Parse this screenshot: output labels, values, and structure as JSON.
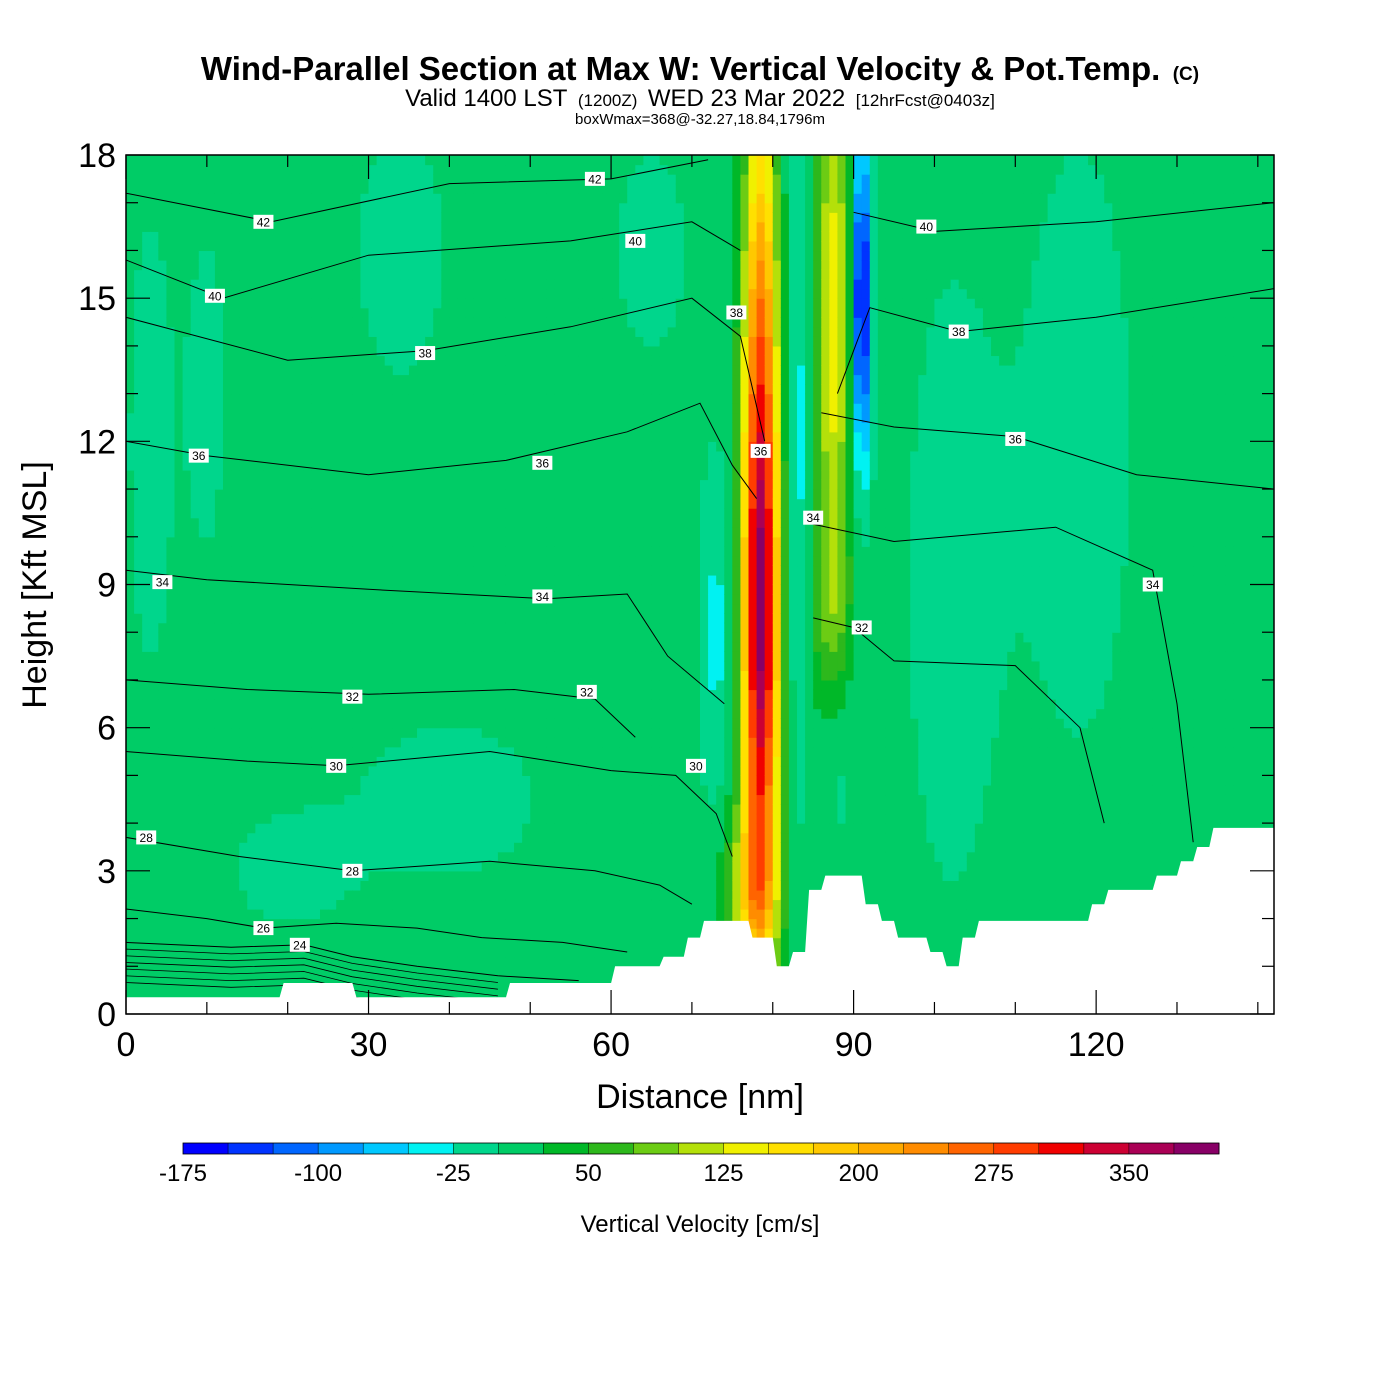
{
  "chart_data": {
    "type": "heatmap",
    "title": "Wind-Parallel Section at Max W: Vertical Velocity & Pot.Temp.",
    "title_mark": "(C)",
    "subtitle": {
      "prefix": "Valid 1400 LST",
      "utc": "(1200Z)",
      "date": "WED 23 Mar 2022",
      "forecast": "[12hrFcst@0403z]"
    },
    "note": "boxWmax=368@-32.27,18.84,1796m",
    "xlabel": "Distance [nm]",
    "ylabel": "Height [Kft MSL]",
    "xlim": [
      0,
      142
    ],
    "ylim": [
      0,
      18
    ],
    "x_ticks": [
      "0",
      "30",
      "60",
      "90",
      "120"
    ],
    "y_ticks": [
      "0",
      "3",
      "6",
      "9",
      "12",
      "15",
      "18"
    ],
    "colorbar": {
      "label": "Vertical Velocity [cm/s]",
      "levels": [
        -175,
        -150,
        -125,
        -100,
        -75,
        -50,
        -25,
        0,
        25,
        50,
        75,
        100,
        125,
        150,
        175,
        200,
        225,
        250,
        275,
        300,
        325,
        350,
        375
      ],
      "tick_labels": [
        "-175",
        "-100",
        "-25",
        "50",
        "125",
        "200",
        "275",
        "350"
      ],
      "colors": [
        "#0000ff",
        "#0033ff",
        "#0066ff",
        "#0099ff",
        "#00c8ff",
        "#00f2f2",
        "#00d68c",
        "#00cc66",
        "#00b828",
        "#2db81c",
        "#6ccc14",
        "#b4e00a",
        "#f0f000",
        "#ffe000",
        "#ffc800",
        "#ffaa00",
        "#ff8c00",
        "#ff6400",
        "#ff3c00",
        "#f00000",
        "#cc0033",
        "#aa0055",
        "#880066"
      ]
    },
    "vertical_velocity": {
      "description_free": true,
      "base_cm_s": 12,
      "features": [
        {
          "x": 78.5,
          "y": 8.0,
          "sx": 1.6,
          "sy": 4.2,
          "value": 360
        },
        {
          "x": 77.5,
          "y": 2.6,
          "sx": 2.2,
          "sy": 1.2,
          "value": 120
        },
        {
          "x": 78.5,
          "y": 15.5,
          "sx": 1.5,
          "sy": 3.5,
          "value": 150
        },
        {
          "x": 87.5,
          "y": 14.5,
          "sx": 1.5,
          "sy": 4.5,
          "value": 130
        },
        {
          "x": 87.0,
          "y": 8.5,
          "sx": 2.0,
          "sy": 1.2,
          "value": 40
        },
        {
          "x": 83.0,
          "y": 12.0,
          "sx": 1.0,
          "sy": 5.5,
          "value": -50
        },
        {
          "x": 91.0,
          "y": 15.0,
          "sx": 0.8,
          "sy": 2.4,
          "value": -190
        },
        {
          "x": 73.0,
          "y": 8.0,
          "sx": 1.5,
          "sy": 2.5,
          "value": -45
        },
        {
          "x": 88.0,
          "y": 5.0,
          "sx": 1.5,
          "sy": 1.5,
          "value": -25
        },
        {
          "x": 3.0,
          "y": 12.0,
          "sx": 2.5,
          "sy": 4.5,
          "value": -20
        },
        {
          "x": 10.0,
          "y": 13.0,
          "sx": 2.0,
          "sy": 3.0,
          "value": -20
        },
        {
          "x": 34.0,
          "y": 16.0,
          "sx": 5.0,
          "sy": 2.5,
          "value": -20
        },
        {
          "x": 65.0,
          "y": 16.0,
          "sx": 4.0,
          "sy": 2.0,
          "value": -20
        },
        {
          "x": 118.0,
          "y": 12.0,
          "sx": 6.0,
          "sy": 6.0,
          "value": -20
        },
        {
          "x": 102.0,
          "y": 9.0,
          "sx": 5.0,
          "sy": 6.0,
          "value": -20
        },
        {
          "x": 40.0,
          "y": 4.5,
          "sx": 10.0,
          "sy": 1.5,
          "value": -20
        },
        {
          "x": 20.0,
          "y": 3.0,
          "sx": 6.0,
          "sy": 1.0,
          "value": -20
        }
      ]
    },
    "terrain": {
      "x": [
        0,
        19,
        19.5,
        28,
        28.5,
        47,
        47.5,
        60,
        60.5,
        66,
        66.5,
        69,
        69.5,
        71,
        71.5,
        77,
        77.5,
        80,
        80.5,
        82,
        82.5,
        84,
        84.5,
        86,
        86.5,
        91,
        91.5,
        93,
        93.5,
        95,
        95.5,
        99,
        99.5,
        101,
        101.5,
        103,
        103.5,
        105,
        105.5,
        119,
        119.5,
        121,
        121.5,
        127,
        127.5,
        130,
        130.5,
        132,
        132.5,
        134,
        134.5,
        138,
        138.5,
        142
      ],
      "y": [
        0.35,
        0.35,
        0.65,
        0.65,
        0.35,
        0.35,
        0.65,
        0.65,
        1.0,
        1.0,
        1.2,
        1.2,
        1.6,
        1.6,
        1.95,
        1.95,
        1.6,
        1.6,
        1.0,
        1.0,
        1.3,
        1.3,
        2.6,
        2.6,
        2.9,
        2.9,
        2.3,
        2.3,
        1.95,
        1.95,
        1.6,
        1.6,
        1.3,
        1.3,
        1.0,
        1.0,
        1.6,
        1.6,
        1.95,
        1.95,
        2.3,
        2.3,
        2.6,
        2.6,
        2.9,
        2.9,
        3.2,
        3.2,
        3.5,
        3.5,
        3.9,
        3.9,
        3.9,
        3.9
      ]
    },
    "theta_contours": [
      {
        "value": 42,
        "label": "42",
        "points": [
          [
            0,
            17.2
          ],
          [
            18,
            16.6
          ],
          [
            40,
            17.4
          ],
          [
            60,
            17.5
          ],
          [
            72,
            17.9
          ]
        ],
        "label_at": [
          58,
          17.5
        ]
      },
      {
        "value": 40,
        "label": "40",
        "points": [
          [
            0,
            15.8
          ],
          [
            12,
            15.0
          ],
          [
            30,
            15.9
          ],
          [
            55,
            16.2
          ],
          [
            70,
            16.6
          ],
          [
            76,
            16.0
          ]
        ],
        "label_at": [
          11,
          15.05
        ]
      },
      {
        "value": 40,
        "label": "40",
        "points": [
          [
            90,
            16.8
          ],
          [
            100,
            16.4
          ],
          [
            120,
            16.6
          ],
          [
            142,
            17.0
          ]
        ],
        "label_at": [
          99,
          16.5
        ]
      },
      {
        "value": 38,
        "label": "38",
        "points": [
          [
            0,
            14.6
          ],
          [
            20,
            13.7
          ],
          [
            37,
            13.9
          ],
          [
            55,
            14.4
          ],
          [
            70,
            15.0
          ],
          [
            76,
            14.2
          ],
          [
            79,
            12.0
          ]
        ],
        "label_at": [
          37,
          13.85
        ]
      },
      {
        "value": 38,
        "label": "38",
        "points": [
          [
            88,
            13.0
          ],
          [
            92,
            14.8
          ],
          [
            103,
            14.3
          ],
          [
            120,
            14.6
          ],
          [
            142,
            15.2
          ]
        ],
        "label_at": [
          103,
          14.3
        ]
      },
      {
        "value": 36,
        "label": "36",
        "points": [
          [
            0,
            12.0
          ],
          [
            10,
            11.7
          ],
          [
            30,
            11.3
          ],
          [
            47,
            11.6
          ],
          [
            62,
            12.2
          ],
          [
            71,
            12.8
          ],
          [
            75,
            11.5
          ],
          [
            78,
            10.8
          ]
        ],
        "label_at": [
          9,
          11.7
        ]
      },
      {
        "value": 36,
        "label": "36",
        "points": [
          [
            86,
            12.6
          ],
          [
            95,
            12.3
          ],
          [
            110,
            12.1
          ],
          [
            125,
            11.3
          ],
          [
            142,
            11.0
          ]
        ],
        "label_at": [
          110,
          12.05
        ]
      },
      {
        "value": 34,
        "label": "34",
        "points": [
          [
            0,
            9.3
          ],
          [
            10,
            9.1
          ],
          [
            30,
            8.9
          ],
          [
            52,
            8.7
          ],
          [
            62,
            8.8
          ],
          [
            67,
            7.5
          ],
          [
            74,
            6.5
          ]
        ],
        "label_at": [
          4.5,
          9.05
        ]
      },
      {
        "value": 34,
        "label": "34",
        "points": [
          [
            84,
            10.3
          ],
          [
            95,
            9.9
          ],
          [
            115,
            10.2
          ],
          [
            127,
            9.3
          ],
          [
            130,
            6.5
          ],
          [
            132,
            3.6
          ]
        ],
        "label_at": [
          127,
          9.0
        ]
      },
      {
        "value": 32,
        "label": "32",
        "points": [
          [
            0,
            7.0
          ],
          [
            15,
            6.8
          ],
          [
            30,
            6.7
          ],
          [
            48,
            6.8
          ],
          [
            58,
            6.6
          ],
          [
            63,
            5.8
          ]
        ],
        "label_at": [
          28,
          6.65
        ]
      },
      {
        "value": 32,
        "label": "32",
        "points": [
          [
            85,
            8.3
          ],
          [
            90,
            8.1
          ],
          [
            95,
            7.4
          ],
          [
            110,
            7.3
          ],
          [
            118,
            6.0
          ],
          [
            121,
            4.0
          ]
        ],
        "label_at": [
          91,
          8.1
        ]
      },
      {
        "value": 30,
        "label": "30",
        "points": [
          [
            0,
            5.5
          ],
          [
            15,
            5.3
          ],
          [
            26,
            5.2
          ],
          [
            45,
            5.5
          ],
          [
            60,
            5.1
          ],
          [
            68,
            5.0
          ],
          [
            73,
            4.2
          ],
          [
            75,
            3.3
          ]
        ],
        "label_at": [
          26,
          5.2
        ]
      },
      {
        "value": 28,
        "label": "28",
        "points": [
          [
            0,
            3.7
          ],
          [
            14,
            3.3
          ],
          [
            28,
            3.0
          ],
          [
            45,
            3.2
          ],
          [
            58,
            3.0
          ],
          [
            66,
            2.7
          ],
          [
            70,
            2.3
          ]
        ],
        "label_at": [
          2.5,
          3.7
        ]
      },
      {
        "value": 26,
        "label": "26",
        "points": [
          [
            0,
            2.2
          ],
          [
            10,
            2.0
          ],
          [
            17,
            1.8
          ],
          [
            26,
            1.9
          ],
          [
            36,
            1.8
          ],
          [
            44,
            1.6
          ],
          [
            54,
            1.5
          ],
          [
            62,
            1.3
          ]
        ],
        "label_at": [
          17,
          1.8
        ]
      },
      {
        "value": 24,
        "label": "24",
        "points": [
          [
            0,
            1.5
          ],
          [
            13,
            1.4
          ],
          [
            22,
            1.45
          ],
          [
            28,
            1.2
          ],
          [
            36,
            1.0
          ],
          [
            46,
            0.8
          ],
          [
            56,
            0.7
          ]
        ],
        "label_at": [
          21.5,
          1.45
        ]
      }
    ],
    "extra_labels": [
      {
        "label": "36",
        "at": [
          51.5,
          11.55
        ]
      },
      {
        "label": "34",
        "at": [
          51.5,
          8.75
        ]
      },
      {
        "label": "32",
        "at": [
          57,
          6.75
        ]
      },
      {
        "label": "28",
        "at": [
          28,
          3.0
        ]
      },
      {
        "label": "30",
        "at": [
          70.5,
          5.2
        ]
      },
      {
        "label": "36",
        "at": [
          78.5,
          11.8
        ]
      },
      {
        "label": "38",
        "at": [
          75.5,
          14.7
        ]
      },
      {
        "label": "40",
        "at": [
          63,
          16.2
        ]
      },
      {
        "label": "42",
        "at": [
          17,
          16.6
        ]
      },
      {
        "label": "34",
        "at": [
          85,
          10.4
        ]
      }
    ]
  }
}
